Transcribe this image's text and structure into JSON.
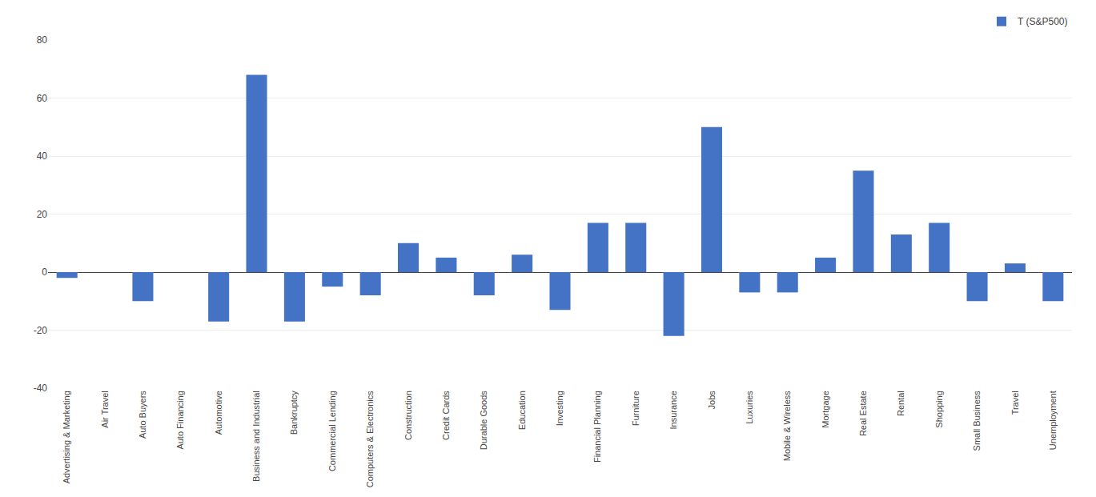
{
  "chart_data": {
    "type": "bar",
    "categories": [
      "Advertising & Marketing",
      "Air Travel",
      "Auto Buyers",
      "Auto Financing",
      "Automotive",
      "Business and Industrial",
      "Bankruptcy",
      "Commercial Lending",
      "Computers & Electronics",
      "Construction",
      "Credit Cards",
      "Durable Goods",
      "Education",
      "Investing",
      "Financial Planning",
      "Furniture",
      "Insurance",
      "Jobs",
      "Luxuries",
      "Mobile & Wireless",
      "Mortgage",
      "Real Estate",
      "Rental",
      "Shopping",
      "Small Business",
      "Travel",
      "Unemployment"
    ],
    "series": [
      {
        "name": "T (S&P500)",
        "color": "#4472C4",
        "values": [
          -2,
          0,
          -10,
          0,
          -17,
          68,
          -17,
          -5,
          -8,
          10,
          5,
          -8,
          6,
          -13,
          17,
          17,
          -22,
          50,
          -7,
          -7,
          5,
          35,
          13,
          17,
          -10,
          3,
          -10
        ]
      }
    ],
    "ylim": [
      -40,
      80
    ],
    "yticks": [
      -40,
      -20,
      0,
      20,
      40,
      60,
      80
    ],
    "grid": true,
    "legend": "upper right"
  }
}
